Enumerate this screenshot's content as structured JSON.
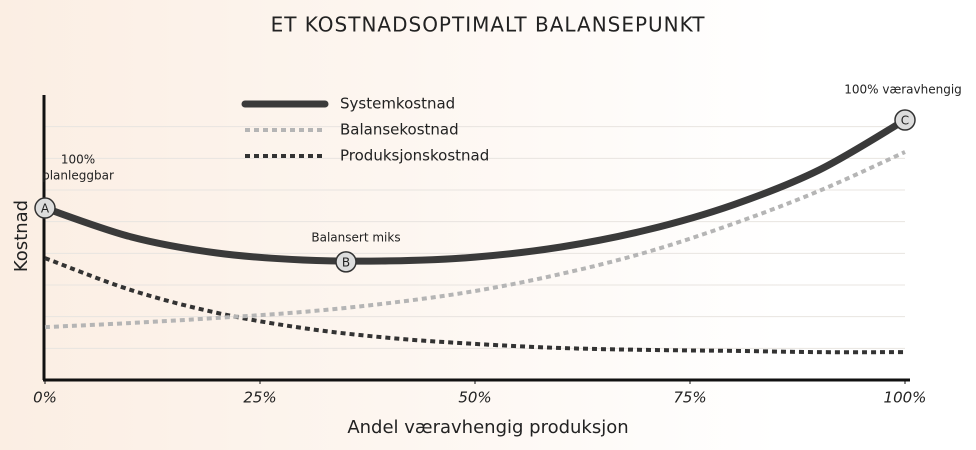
{
  "chart_data": {
    "type": "line",
    "title": "ET KOSTNADSOPTIMALT BALANSEPUNKT",
    "xlabel": "Andel væravhengig produksjon",
    "ylabel": "Kostnad",
    "x": [
      0,
      10,
      20,
      30,
      40,
      50,
      60,
      70,
      80,
      90,
      100
    ],
    "series": [
      {
        "name": "Systemkostnad",
        "color": "#3a3a3a",
        "style": "solid",
        "values": [
          5.43,
          4.52,
          4.01,
          3.79,
          3.76,
          3.88,
          4.2,
          4.74,
          5.53,
          6.63,
          8.21
        ]
      },
      {
        "name": "Balansekostnad",
        "color": "#b5b5b5",
        "style": "dashed",
        "values": [
          1.67,
          1.8,
          1.96,
          2.15,
          2.43,
          2.81,
          3.35,
          4.04,
          4.93,
          5.97,
          7.2
        ]
      },
      {
        "name": "Produksjonskostnad",
        "color": "#333333",
        "style": "dashed",
        "values": [
          3.85,
          2.84,
          2.12,
          1.64,
          1.33,
          1.14,
          1.01,
          0.95,
          0.92,
          0.88,
          0.88
        ]
      }
    ],
    "xlim": [
      0,
      100
    ],
    "xticks": [
      {
        "value": 0,
        "label": "0%"
      },
      {
        "value": 25,
        "label": "25%"
      },
      {
        "value": 50,
        "label": "50%"
      },
      {
        "value": 75,
        "label": "75%"
      },
      {
        "value": 100,
        "label": "100%"
      }
    ],
    "ylim": [
      0,
      9
    ],
    "yticks": [
      1,
      2,
      3,
      4,
      5,
      6,
      7,
      8
    ],
    "grid": true,
    "markers": [
      {
        "label": "A",
        "x": 0,
        "y": 5.43,
        "note": [
          "100%",
          "planleggbar"
        ]
      },
      {
        "label": "B",
        "x": 35,
        "y": 3.73,
        "note": [
          "Balansert miks"
        ]
      },
      {
        "label": "C",
        "x": 100,
        "y": 8.21,
        "note": [
          "100% væravhengig"
        ]
      }
    ]
  }
}
